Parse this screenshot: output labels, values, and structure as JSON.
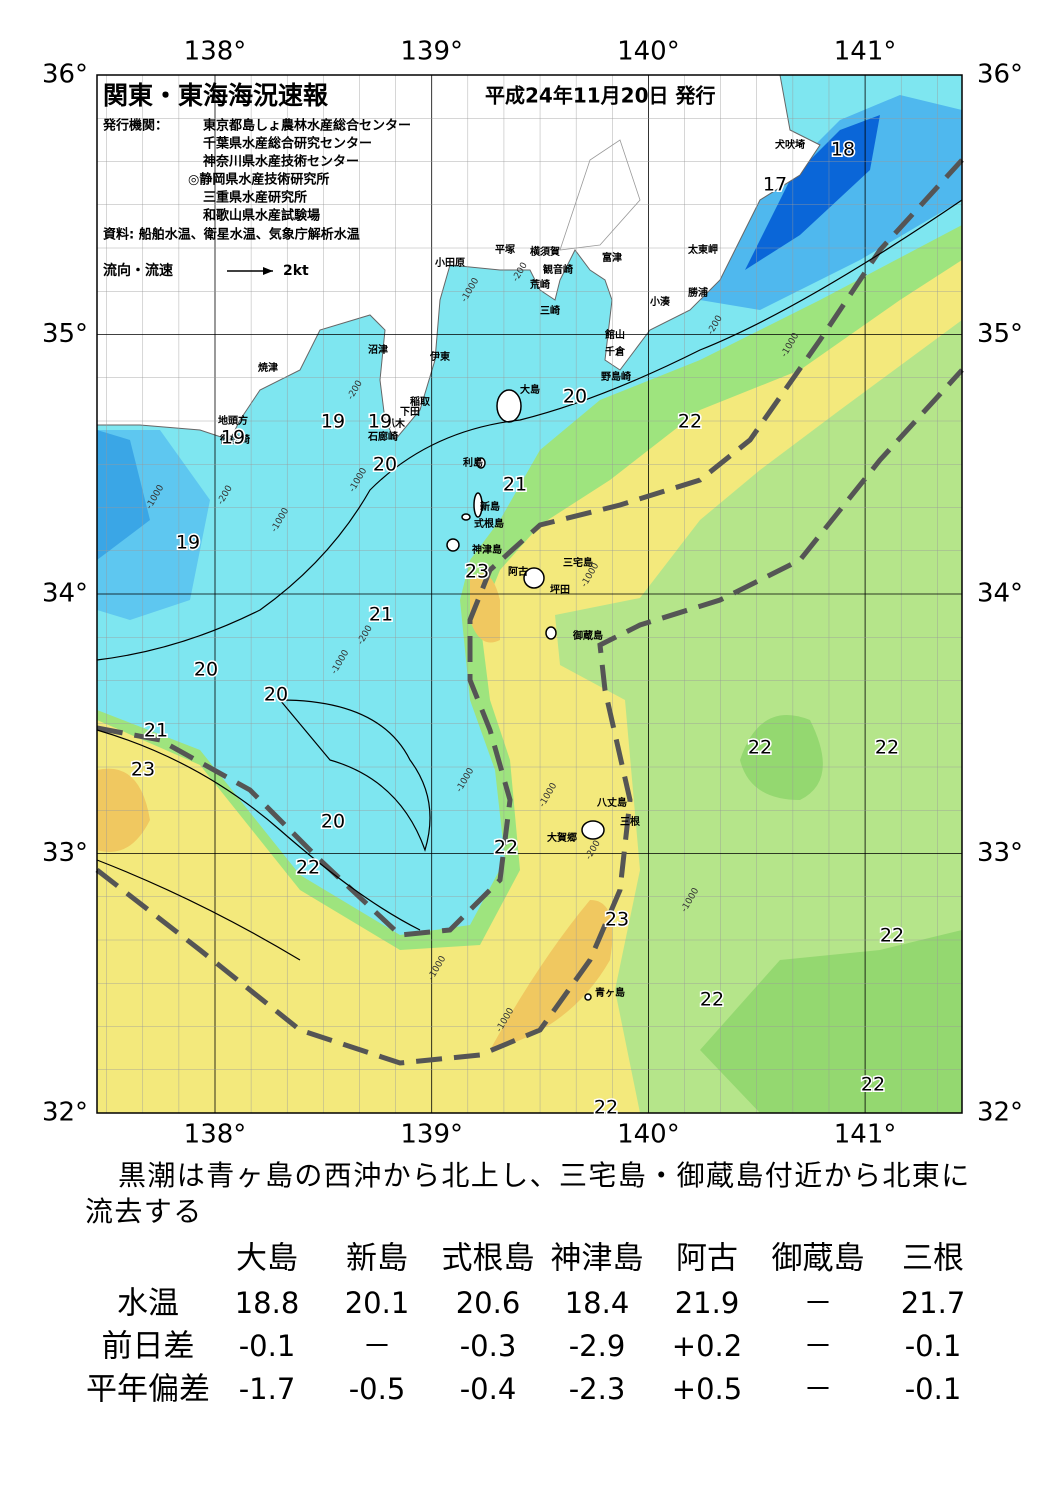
{
  "header": {
    "title": "関東・東海海況速報",
    "date": "平成24年11月20日 発行",
    "issuer_label": "発行機関：",
    "issuers": [
      "東京都島しょ農林水産総合センター",
      "千葉県水産総合研究センター",
      "神奈川県水産技術センター",
      "◎静岡県水産技術研究所",
      "三重県水産研究所",
      "和歌山県水産試験場"
    ],
    "source": "資料: 船舶水温、衛星水温、気象庁解析水温",
    "legend_label": "流向・流速",
    "legend_scale": "2kt"
  },
  "axes": {
    "lon_labels": [
      "138°",
      "139°",
      "140°",
      "141°"
    ],
    "lat_labels": [
      "36°",
      "35°",
      "34°",
      "33°",
      "32°"
    ]
  },
  "places": [
    "小田原",
    "平塚",
    "横須賀",
    "観音崎",
    "荒崎",
    "三崎",
    "富津",
    "太東岬",
    "勝浦",
    "小湊",
    "館山",
    "千倉",
    "野島崎",
    "犬吠埼",
    "沼津",
    "伊東",
    "焼津",
    "稲取",
    "下田",
    "爪木",
    "石廊崎",
    "地頭方",
    "御前崎",
    "大島",
    "利島",
    "新島",
    "式根島",
    "神津島",
    "三宅島",
    "阿古",
    "坪田",
    "御蔵島",
    "八丈島",
    "三根",
    "大賀郷",
    "青ヶ島"
  ],
  "isotherm_labels": [
    "18",
    "17",
    "20",
    "22",
    "19",
    "19",
    "19",
    "20",
    "21",
    "19",
    "23",
    "21",
    "20",
    "20",
    "21",
    "23",
    "22",
    "22",
    "20",
    "22",
    "22",
    "23",
    "22",
    "22",
    "22",
    "22"
  ],
  "depth_labels": [
    "-200",
    "-1000",
    "-200",
    "-1000",
    "-200",
    "-1000",
    "-200",
    "-1000",
    "-1000",
    "-200",
    "-1000",
    "-1000",
    "-1000",
    "-200",
    "-1000",
    "-1000",
    "-1000",
    "-1000"
  ],
  "description": "黒潮は青ヶ島の西沖から北上し、三宅島・御蔵島付近から北東に流去する",
  "table": {
    "columns": [
      "大島",
      "新島",
      "式根島",
      "神津島",
      "阿古",
      "御蔵島",
      "三根"
    ],
    "rows": [
      {
        "label": "水温",
        "values": [
          "18.8",
          "20.1",
          "20.6",
          "18.4",
          "21.9",
          "－",
          "21.7"
        ]
      },
      {
        "label": "前日差",
        "values": [
          "-0.1",
          "－",
          "-0.3",
          "-2.9",
          "+0.2",
          "－",
          "-0.1"
        ]
      },
      {
        "label": "平年偏差",
        "values": [
          "-1.7",
          "-0.5",
          "-0.4",
          "-2.3",
          "+0.5",
          "－",
          "-0.1"
        ]
      }
    ]
  }
}
